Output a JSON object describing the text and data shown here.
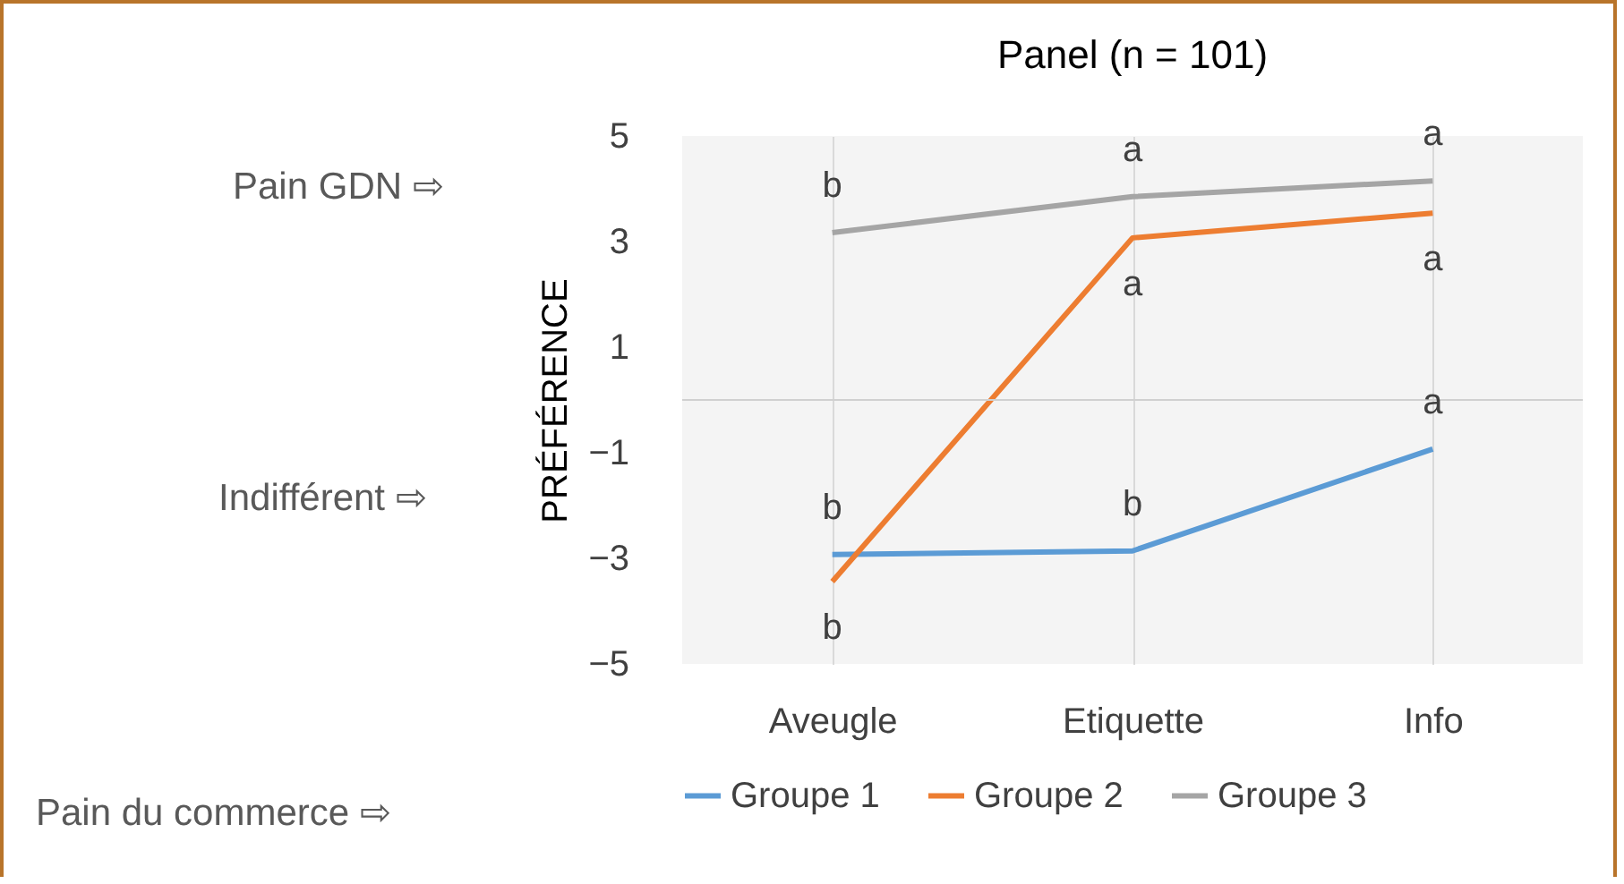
{
  "chart_data": {
    "type": "line",
    "title": "Panel (n = 101)",
    "ylabel": "PRÉFÉRENCE",
    "categories": [
      "Aveugle",
      "Etiquette",
      "Info"
    ],
    "series": [
      {
        "name": "Groupe 1",
        "color": "#5b9bd5",
        "values": [
          -2.93,
          -2.86,
          -0.93
        ]
      },
      {
        "name": "Groupe 2",
        "color": "#ed7d31",
        "values": [
          -3.44,
          3.07,
          3.54
        ]
      },
      {
        "name": "Groupe 3",
        "color": "#a5a5a5",
        "values": [
          3.17,
          3.85,
          4.15
        ]
      }
    ],
    "ylim": [
      -5,
      5
    ],
    "yticks": [
      -5,
      -3,
      -1,
      1,
      3,
      5
    ],
    "grid": "x",
    "legend": "bottom",
    "line_style": "solid",
    "ref_lines": [
      {
        "axis": "y",
        "value": 0,
        "color": "#d0d0d0"
      }
    ],
    "annotations": [
      "Pain GDN ⇨",
      "Indifférent ⇨",
      "Pain du commerce ⇨",
      "b",
      "b",
      "a",
      "b",
      "a",
      "a",
      "b",
      "a",
      "a"
    ]
  }
}
